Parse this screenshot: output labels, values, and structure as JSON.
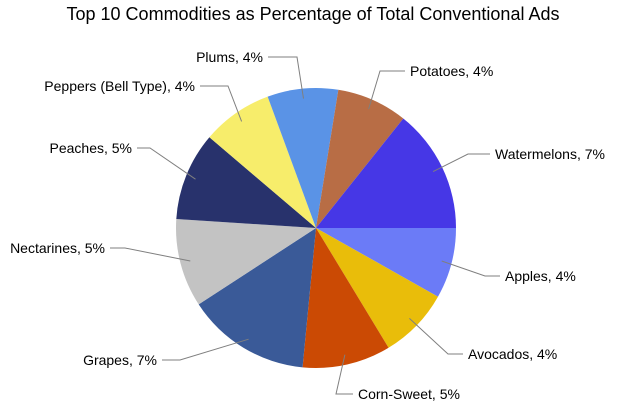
{
  "chart_data": {
    "type": "pie",
    "title": "Top 10 Commodities as Percentage of Total Conventional Ads",
    "start_angle_deg": 0,
    "direction": "clockwise",
    "legend": "none",
    "slices": [
      {
        "label": "Apples, 4%",
        "value": 4,
        "color": "#6b7bf7"
      },
      {
        "label": "Avocados, 4%",
        "value": 4,
        "color": "#e9bd0a"
      },
      {
        "label": "Corn-Sweet, 5%",
        "value": 5,
        "color": "#cb4a04"
      },
      {
        "label": "Grapes, 7%",
        "value": 7,
        "color": "#3a5a98"
      },
      {
        "label": "Nectarines, 5%",
        "value": 5,
        "color": "#c3c3c3"
      },
      {
        "label": "Peaches, 5%",
        "value": 5,
        "color": "#28326c"
      },
      {
        "label": "Peppers (Bell Type), 4%",
        "value": 4,
        "color": "#f7ed6b"
      },
      {
        "label": "Plums, 4%",
        "value": 4,
        "color": "#5a93e6"
      },
      {
        "label": "Potatoes, 4%",
        "value": 4,
        "color": "#b86d45"
      },
      {
        "label": "Watermelons, 7%",
        "value": 7,
        "color": "#4637e6"
      }
    ]
  }
}
